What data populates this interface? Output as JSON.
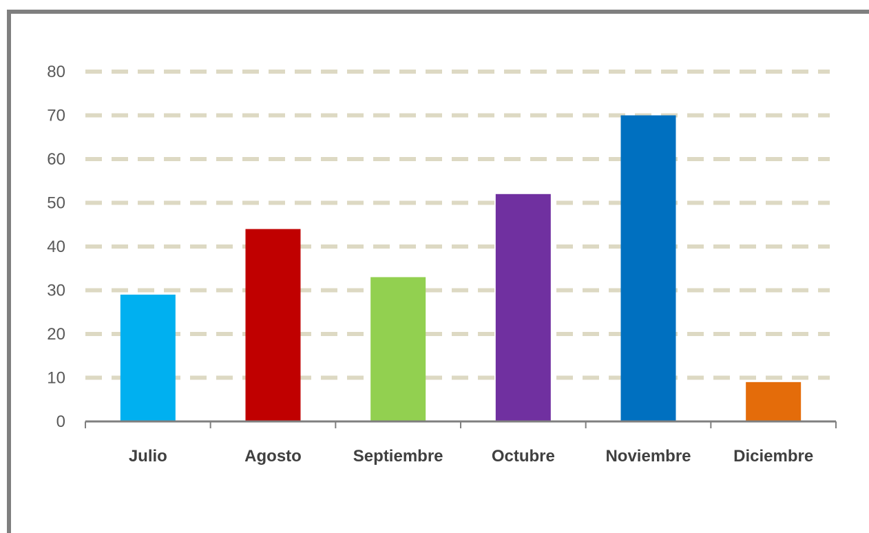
{
  "chart_data": {
    "type": "bar",
    "categories": [
      "Julio",
      "Agosto",
      "Septiembre",
      "Octubre",
      "Noviembre",
      "Diciembre"
    ],
    "values": [
      29,
      44,
      33,
      52,
      70,
      9
    ],
    "colors": [
      "#00b0f0",
      "#c00000",
      "#92d050",
      "#7030a0",
      "#0070c0",
      "#e46c0a"
    ],
    "ylim": [
      0,
      80
    ],
    "yticks": [
      0,
      10,
      20,
      30,
      40,
      50,
      60,
      70,
      80
    ],
    "grid": true,
    "grid_color": "#ddd9c3",
    "axis_color": "#7f7f7f"
  }
}
